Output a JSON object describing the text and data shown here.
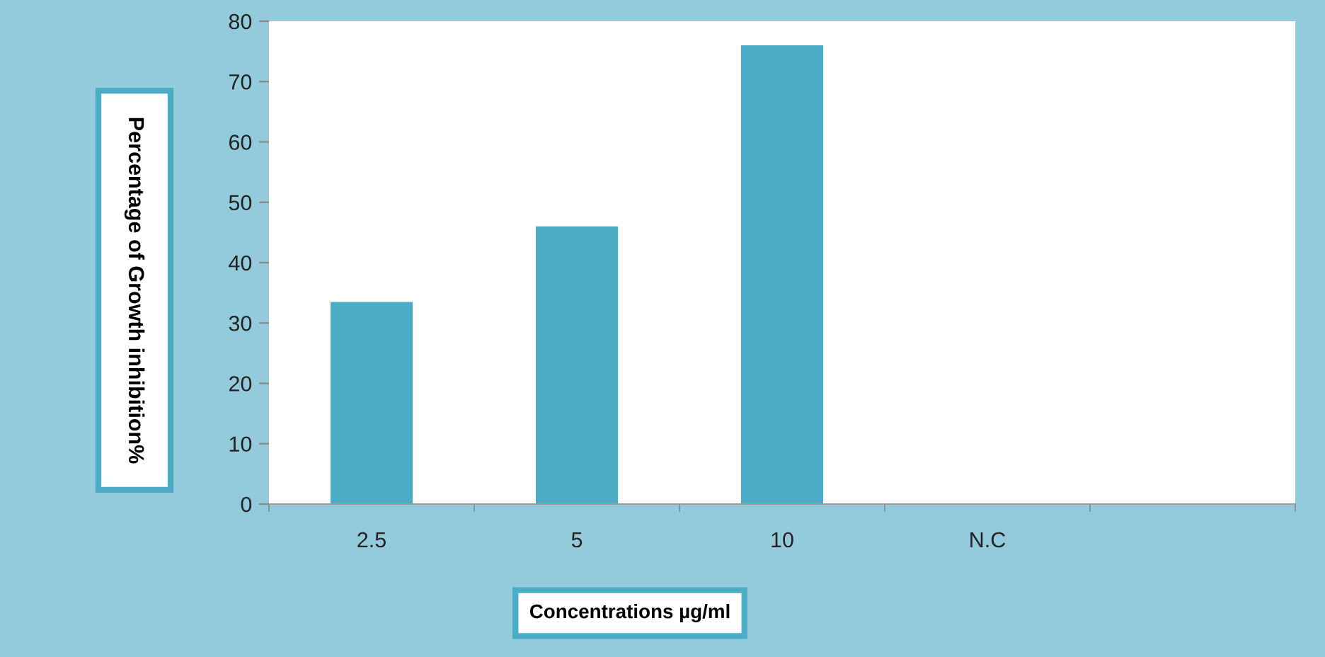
{
  "chart_data": {
    "type": "bar",
    "categories": [
      "2.5",
      "5",
      "10",
      "N.C",
      null
    ],
    "values": [
      33.5,
      46,
      76,
      0,
      null
    ],
    "color": "#4bacc6",
    "xlabel": "Concentrations µg/ml",
    "ylabel": "Percentage of Growth inhibition%",
    "ylim": [
      0,
      80
    ],
    "yticks": [
      0,
      10,
      20,
      30,
      40,
      50,
      60,
      70,
      80
    ],
    "grid": false,
    "legend": false
  }
}
